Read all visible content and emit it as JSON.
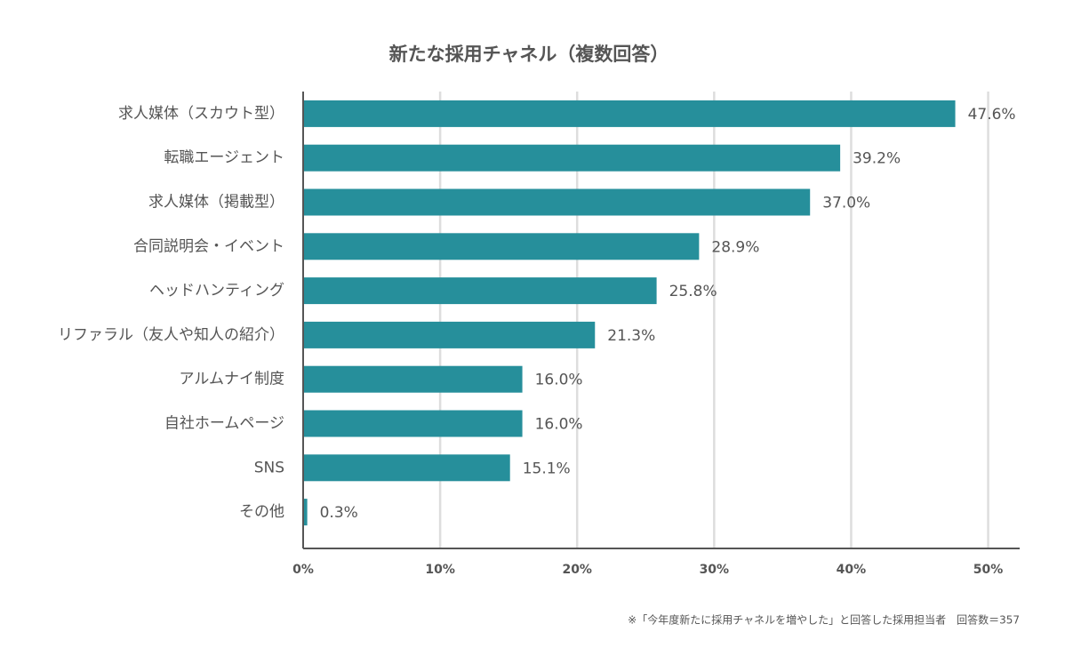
{
  "chart_data": {
    "type": "barh",
    "title": "新たな採用チャネル（複数回答）",
    "categories": [
      "求人媒体（スカウト型）",
      "転職エージェント",
      "求人媒体（掲載型）",
      "合同説明会・イベント",
      "ヘッドハンティング",
      "リファラル（友人や知人の紹介）",
      "アルムナイ制度",
      "自社ホームページ",
      "SNS",
      "その他"
    ],
    "values": [
      47.6,
      39.2,
      37.0,
      28.9,
      25.8,
      21.3,
      16.0,
      16.0,
      15.1,
      0.3
    ],
    "value_labels": [
      "47.6%",
      "39.2%",
      "37.0%",
      "28.9%",
      "25.8%",
      "21.3%",
      "16.0%",
      "16.0%",
      "15.1%",
      "0.3%"
    ],
    "color": "#268f9b",
    "xlim": [
      0,
      52.3
    ],
    "xticks": [
      {
        "value": 0,
        "label": "0%"
      },
      {
        "value": 10,
        "label": "10%"
      },
      {
        "value": 20,
        "label": "20%"
      },
      {
        "value": 30,
        "label": "30%"
      },
      {
        "value": 40,
        "label": "40%"
      },
      {
        "value": 50,
        "label": "50%"
      }
    ],
    "grid": true,
    "footnote": "※「今年度新たに採用チャネルを増やした」と回答した採用担当者　回答数＝357"
  }
}
